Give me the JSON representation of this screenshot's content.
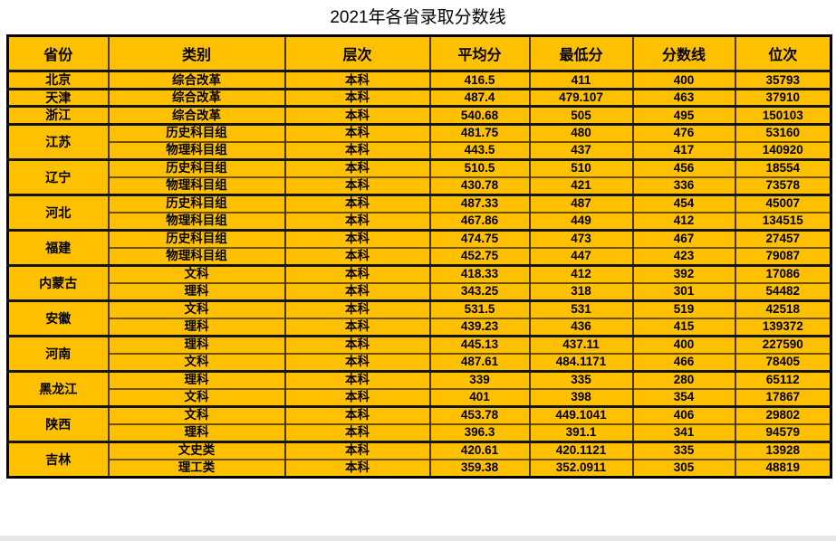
{
  "title": "2021年各省录取分数线",
  "colors": {
    "cell_fill": "#FFC000",
    "thin_line": "#6b5300",
    "column_line": "#4a3800",
    "heavy_line": "#141414",
    "outer_border": "#000000",
    "text_color": "#000000",
    "bottom_strip": "#e9e8e8",
    "background": "#ffffff"
  },
  "table": {
    "headers": [
      "省份",
      "类别",
      "层次",
      "平均分",
      "最低分",
      "分数线",
      "位次"
    ],
    "groups": [
      {
        "province": "北京",
        "rows": [
          [
            "综合改革",
            "本科",
            "416.5",
            "411",
            "400",
            "35793"
          ]
        ]
      },
      {
        "province": "天津",
        "rows": [
          [
            "综合改革",
            "本科",
            "487.4",
            "479.107",
            "463",
            "37910"
          ]
        ]
      },
      {
        "province": "浙江",
        "rows": [
          [
            "综合改革",
            "本科",
            "540.68",
            "505",
            "495",
            "150103"
          ]
        ]
      },
      {
        "province": "江苏",
        "rows": [
          [
            "历史科目组",
            "本科",
            "481.75",
            "480",
            "476",
            "53160"
          ],
          [
            "物理科目组",
            "本科",
            "443.5",
            "437",
            "417",
            "140920"
          ]
        ]
      },
      {
        "province": "辽宁",
        "rows": [
          [
            "历史科目组",
            "本科",
            "510.5",
            "510",
            "456",
            "18554"
          ],
          [
            "物理科目组",
            "本科",
            "430.78",
            "421",
            "336",
            "73578"
          ]
        ]
      },
      {
        "province": "河北",
        "rows": [
          [
            "历史科目组",
            "本科",
            "487.33",
            "487",
            "454",
            "45007"
          ],
          [
            "物理科目组",
            "本科",
            "467.86",
            "449",
            "412",
            "134515"
          ]
        ]
      },
      {
        "province": "福建",
        "rows": [
          [
            "历史科目组",
            "本科",
            "474.75",
            "473",
            "467",
            "27457"
          ],
          [
            "物理科目组",
            "本科",
            "452.75",
            "447",
            "423",
            "79087"
          ]
        ]
      },
      {
        "province": "内蒙古",
        "rows": [
          [
            "文科",
            "本科",
            "418.33",
            "412",
            "392",
            "17086"
          ],
          [
            "理科",
            "本科",
            "343.25",
            "318",
            "301",
            "54482"
          ]
        ]
      },
      {
        "province": "安徽",
        "rows": [
          [
            "文科",
            "本科",
            "531.5",
            "531",
            "519",
            "42518"
          ],
          [
            "理科",
            "本科",
            "439.23",
            "436",
            "415",
            "139372"
          ]
        ]
      },
      {
        "province": "河南",
        "rows": [
          [
            "理科",
            "本科",
            "445.13",
            "437.11",
            "400",
            "227590"
          ],
          [
            "文科",
            "本科",
            "487.61",
            "484.1171",
            "466",
            "78405"
          ]
        ]
      },
      {
        "province": "黑龙江",
        "rows": [
          [
            "理科",
            "本科",
            "339",
            "335",
            "280",
            "65112"
          ],
          [
            "文科",
            "本科",
            "401",
            "398",
            "354",
            "17867"
          ]
        ]
      },
      {
        "province": "陕西",
        "rows": [
          [
            "文科",
            "本科",
            "453.78",
            "449.1041",
            "406",
            "29802"
          ],
          [
            "理科",
            "本科",
            "396.3",
            "391.1",
            "341",
            "94579"
          ]
        ]
      },
      {
        "province": "吉林",
        "rows": [
          [
            "文史类",
            "本科",
            "420.61",
            "420.1121",
            "335",
            "13928"
          ],
          [
            "理工类",
            "本科",
            "359.38",
            "352.0911",
            "305",
            "48819"
          ]
        ]
      }
    ]
  },
  "chart_data": {
    "type": "table",
    "title": "2021年各省录取分数线",
    "columns": [
      "省份",
      "类别",
      "层次",
      "平均分",
      "最低分",
      "分数线",
      "位次"
    ],
    "rows": [
      [
        "北京",
        "综合改革",
        "本科",
        416.5,
        411,
        400,
        35793
      ],
      [
        "天津",
        "综合改革",
        "本科",
        487.4,
        479.107,
        463,
        37910
      ],
      [
        "浙江",
        "综合改革",
        "本科",
        540.68,
        505,
        495,
        150103
      ],
      [
        "江苏",
        "历史科目组",
        "本科",
        481.75,
        480,
        476,
        53160
      ],
      [
        "江苏",
        "物理科目组",
        "本科",
        443.5,
        437,
        417,
        140920
      ],
      [
        "辽宁",
        "历史科目组",
        "本科",
        510.5,
        510,
        456,
        18554
      ],
      [
        "辽宁",
        "物理科目组",
        "本科",
        430.78,
        421,
        336,
        73578
      ],
      [
        "河北",
        "历史科目组",
        "本科",
        487.33,
        487,
        454,
        45007
      ],
      [
        "河北",
        "物理科目组",
        "本科",
        467.86,
        449,
        412,
        134515
      ],
      [
        "福建",
        "历史科目组",
        "本科",
        474.75,
        473,
        467,
        27457
      ],
      [
        "福建",
        "物理科目组",
        "本科",
        452.75,
        447,
        423,
        79087
      ],
      [
        "内蒙古",
        "文科",
        "本科",
        418.33,
        412,
        392,
        17086
      ],
      [
        "内蒙古",
        "理科",
        "本科",
        343.25,
        318,
        301,
        54482
      ],
      [
        "安徽",
        "文科",
        "本科",
        531.5,
        531,
        519,
        42518
      ],
      [
        "安徽",
        "理科",
        "本科",
        439.23,
        436,
        415,
        139372
      ],
      [
        "河南",
        "理科",
        "本科",
        445.13,
        437.11,
        400,
        227590
      ],
      [
        "河南",
        "文科",
        "本科",
        487.61,
        484.1171,
        466,
        78405
      ],
      [
        "黑龙江",
        "理科",
        "本科",
        339,
        335,
        280,
        65112
      ],
      [
        "黑龙江",
        "文科",
        "本科",
        401,
        398,
        354,
        17867
      ],
      [
        "陕西",
        "文科",
        "本科",
        453.78,
        449.1041,
        406,
        29802
      ],
      [
        "陕西",
        "理科",
        "本科",
        396.3,
        391.1,
        341,
        94579
      ],
      [
        "吉林",
        "文史类",
        "本科",
        420.61,
        420.1121,
        335,
        13928
      ],
      [
        "吉林",
        "理工类",
        "本科",
        359.38,
        352.0911,
        305,
        48819
      ]
    ]
  }
}
